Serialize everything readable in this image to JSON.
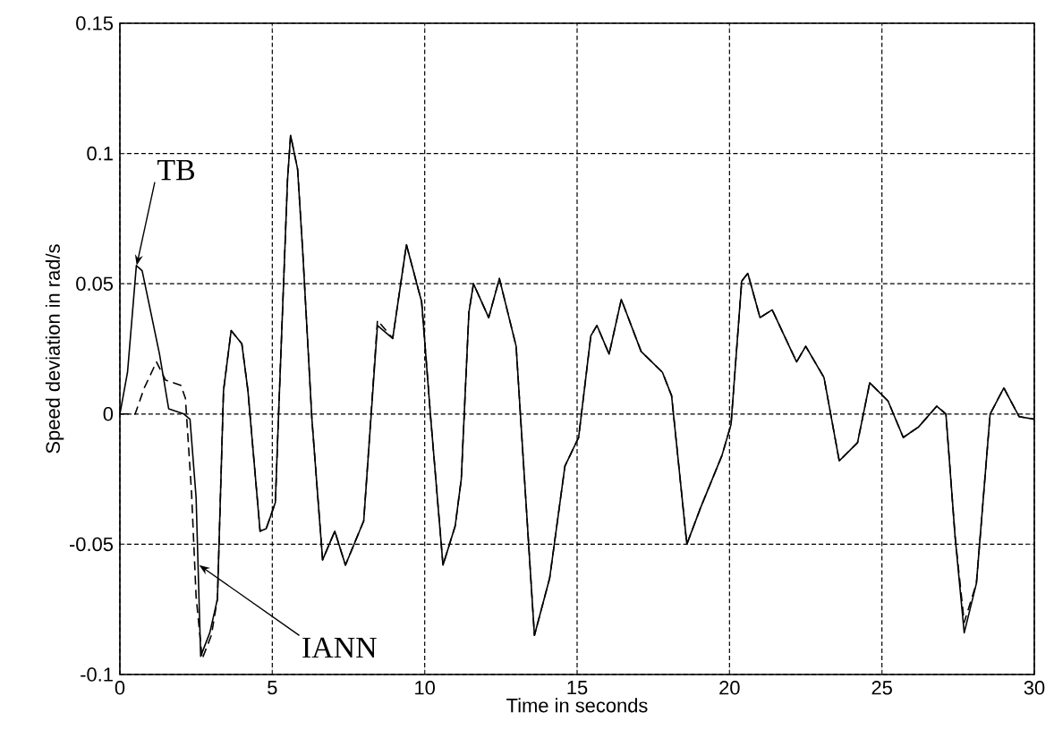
{
  "chart_data": {
    "type": "line",
    "xlabel": "Time in seconds",
    "ylabel": "Speed deviation in rad/s",
    "xlim": [
      0,
      30
    ],
    "ylim": [
      -0.1,
      0.15
    ],
    "xticks": [
      0,
      5,
      10,
      15,
      20,
      25,
      30
    ],
    "yticks": [
      -0.1,
      -0.05,
      0,
      0.05,
      0.1,
      0.15
    ],
    "grid": true,
    "series": [
      {
        "color": "#000000",
        "line_style": "solid",
        "x": [
          0,
          0.25,
          0.54,
          0.73,
          1.3,
          1.6,
          2.1,
          2.3,
          2.5,
          2.65,
          2.95,
          3.2,
          3.4,
          3.65,
          4.0,
          4.2,
          4.6,
          4.8,
          5.1,
          5.2,
          5.5,
          5.6,
          5.83,
          6.0,
          6.3,
          6.65,
          7.05,
          7.4,
          8.0,
          8.45,
          8.95,
          9.4,
          9.9,
          10.2,
          10.6,
          11.0,
          11.2,
          11.45,
          11.6,
          12.1,
          12.45,
          13.0,
          13.15,
          13.6,
          14.1,
          14.6,
          15.05,
          15.45,
          15.65,
          16.05,
          16.45,
          17.1,
          17.8,
          18.1,
          18.6,
          19.05,
          19.75,
          20.05,
          20.4,
          20.6,
          21.0,
          21.4,
          22.2,
          22.5,
          23.1,
          23.6,
          24.2,
          24.6,
          25.2,
          25.7,
          26.2,
          26.8,
          27.1,
          27.4,
          27.7,
          28.1,
          28.55,
          29.0,
          29.5,
          30
        ],
        "values": [
          0,
          0.016,
          0.057,
          0.055,
          0.023,
          0.002,
          0,
          -0.002,
          -0.032,
          -0.093,
          -0.084,
          -0.071,
          0.009,
          0.032,
          0.027,
          0.009,
          -0.045,
          -0.044,
          -0.034,
          -0.002,
          0.09,
          0.107,
          0.094,
          0.062,
          -0.002,
          -0.056,
          -0.045,
          -0.058,
          -0.041,
          0.034,
          0.029,
          0.065,
          0.043,
          -0.002,
          -0.058,
          -0.043,
          -0.025,
          0.039,
          0.05,
          0.037,
          0.052,
          0.026,
          -0.002,
          -0.085,
          -0.063,
          -0.02,
          -0.009,
          0.03,
          0.034,
          0.023,
          0.044,
          0.024,
          0.016,
          0.007,
          -0.05,
          -0.036,
          -0.016,
          -0.004,
          0.051,
          0.054,
          0.037,
          0.04,
          0.02,
          0.026,
          0.014,
          -0.018,
          -0.011,
          0.012,
          0.005,
          -0.009,
          -0.005,
          0.003,
          0,
          -0.047,
          -0.084,
          -0.065,
          0,
          0.01,
          -0.001,
          -0.002
        ]
      },
      {
        "color": "#000000",
        "line_style": "dashed",
        "x": [
          0,
          0.5,
          0.8,
          1.2,
          1.5,
          2.0,
          2.15,
          2.35,
          2.5,
          2.7,
          3.0,
          3.2,
          3.4,
          3.65,
          4.0,
          4.2,
          4.6,
          4.8,
          5.1,
          5.2,
          5.5,
          5.6,
          5.83,
          6.0,
          6.3,
          6.65,
          7.05,
          7.4,
          8.0,
          8.45,
          8.95,
          9.4,
          9.9,
          10.2,
          10.6,
          11.0,
          11.2,
          11.45,
          11.6,
          12.1,
          12.45,
          13.0,
          13.15,
          13.6,
          14.1,
          14.6,
          15.05,
          15.45,
          15.65,
          16.05,
          16.45,
          17.1,
          17.8,
          18.1,
          18.6,
          19.05,
          19.75,
          20.05,
          20.4,
          20.6,
          21.0,
          21.4,
          22.2,
          22.5,
          23.1,
          23.6,
          24.2,
          24.6,
          25.2,
          25.7,
          26.2,
          26.8,
          27.1,
          27.4,
          27.7,
          28.1,
          28.55,
          29.0,
          29.5,
          30
        ],
        "values": [
          0,
          0,
          0.01,
          0.02,
          0.013,
          0.011,
          0.006,
          -0.03,
          -0.07,
          -0.094,
          -0.085,
          -0.071,
          0.009,
          0.032,
          0.027,
          0.009,
          -0.045,
          -0.044,
          -0.034,
          -0.002,
          0.09,
          0.107,
          0.094,
          0.062,
          -0.002,
          -0.056,
          -0.045,
          -0.058,
          -0.041,
          0.036,
          0.029,
          0.065,
          0.043,
          -0.002,
          -0.058,
          -0.043,
          -0.025,
          0.039,
          0.05,
          0.037,
          0.052,
          0.026,
          -0.002,
          -0.085,
          -0.063,
          -0.02,
          -0.009,
          0.03,
          0.034,
          0.023,
          0.044,
          0.024,
          0.016,
          0.007,
          -0.05,
          -0.036,
          -0.016,
          -0.004,
          0.051,
          0.054,
          0.037,
          0.04,
          0.02,
          0.026,
          0.014,
          -0.018,
          -0.011,
          0.012,
          0.005,
          -0.009,
          -0.005,
          0.003,
          0,
          -0.047,
          -0.08,
          -0.065,
          0,
          0.01,
          -0.001,
          -0.002
        ]
      }
    ],
    "annotations": [
      {
        "text": "TB",
        "x": 0.55,
        "y": 0.057
      },
      {
        "text": "IANN",
        "x": 2.6,
        "y": -0.058
      }
    ]
  }
}
